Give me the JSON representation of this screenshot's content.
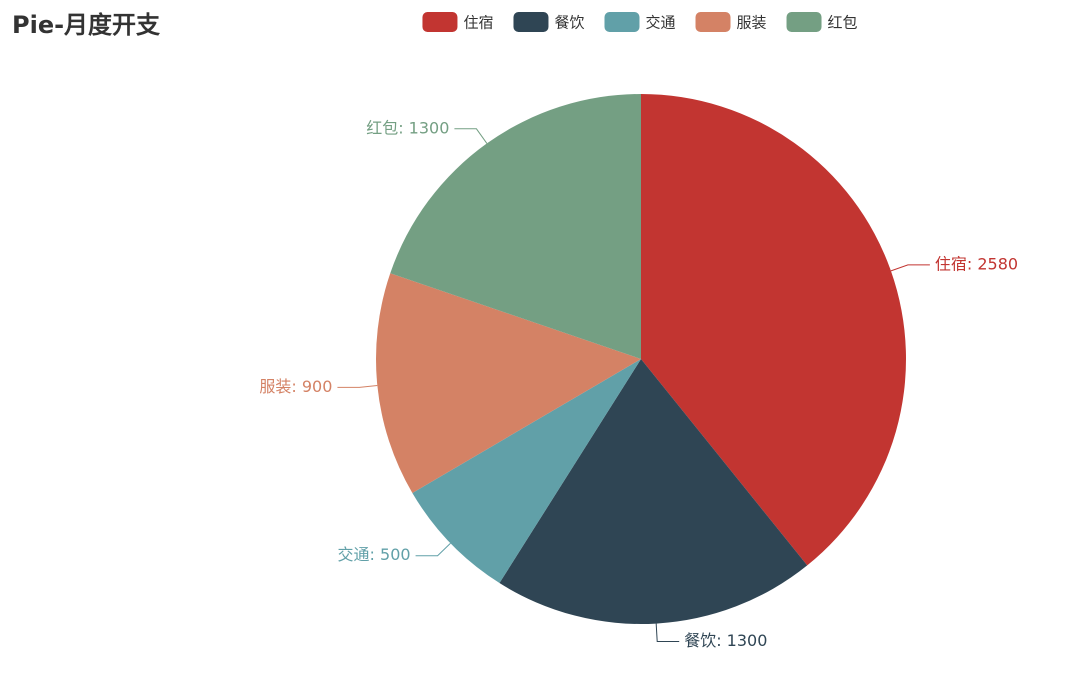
{
  "chart_data": {
    "type": "pie",
    "title": "Pie-月度开支",
    "categories": [
      "住宿",
      "餐饮",
      "交通",
      "服装",
      "红包"
    ],
    "values": [
      2580,
      1300,
      500,
      900,
      1300
    ],
    "value_labels": [
      "住宿: 2580",
      "餐饮: 1300",
      "交通: 500",
      "服装: 900",
      "红包: 1300"
    ],
    "colors": [
      "#c23531",
      "#2f4554",
      "#61a0a8",
      "#d48265",
      "#749f83"
    ],
    "legend": "top"
  }
}
